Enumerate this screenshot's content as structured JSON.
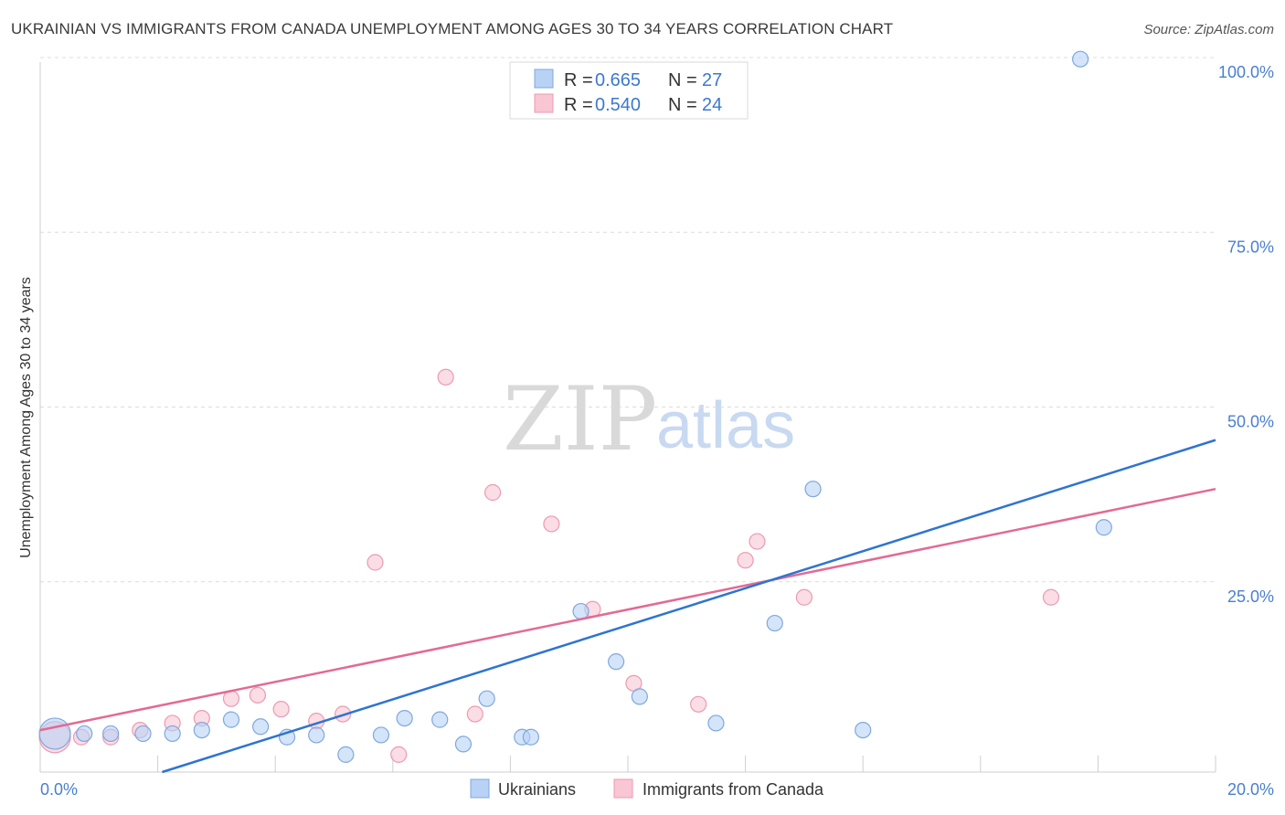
{
  "header": {
    "title": "UKRAINIAN VS IMMIGRANTS FROM CANADA UNEMPLOYMENT AMONG AGES 30 TO 34 YEARS CORRELATION CHART",
    "source": "Source: ZipAtlas.com"
  },
  "watermark": {
    "zip": "ZIP",
    "atlas": "atlas"
  },
  "legend_top": [
    {
      "r_label": "R = ",
      "r_value": "0.665",
      "n_label": "N = ",
      "n_value": "27"
    },
    {
      "r_label": "R = ",
      "r_value": "0.540",
      "n_label": "N = ",
      "n_value": "24"
    }
  ],
  "colors": {
    "blue_fill": "#b8d2f5",
    "blue_stroke": "#7fa8dc",
    "blue_line": "#2f74d0",
    "pink_fill": "#f9c6d4",
    "pink_stroke": "#ec9ab2",
    "pink_line": "#e36a93",
    "value_text": "#3d78cf",
    "grid": "#dcdcdc"
  },
  "chart_data": {
    "type": "scatter",
    "title": "UKRAINIAN VS IMMIGRANTS FROM CANADA UNEMPLOYMENT AMONG AGES 30 TO 34 YEARS CORRELATION CHART",
    "xlabel": "",
    "ylabel": "Unemployment Among Ages 30 to 34 years",
    "xlim": [
      0,
      20
    ],
    "ylim": [
      0,
      100
    ],
    "x_tick_labels": [
      {
        "value": 0,
        "label": "0.0%"
      },
      {
        "value": 20,
        "label": "20.0%"
      }
    ],
    "y_tick_labels": [
      {
        "value": 25,
        "label": "25.0%"
      },
      {
        "value": 50,
        "label": "50.0%"
      },
      {
        "value": 75,
        "label": "75.0%"
      },
      {
        "value": 100,
        "label": "100.0%"
      }
    ],
    "series": [
      {
        "name": "Ukrainians",
        "color": "#b8d2f5",
        "r": 0.665,
        "n": 27,
        "trend": {
          "x": [
            0,
            20
          ],
          "y": [
            -5.5,
            47.5
          ]
        },
        "points": [
          {
            "x": 0.25,
            "y": 5.5,
            "large": true
          },
          {
            "x": 0.75,
            "y": 5.5
          },
          {
            "x": 1.2,
            "y": 5.5
          },
          {
            "x": 1.75,
            "y": 5.5
          },
          {
            "x": 2.25,
            "y": 5.5
          },
          {
            "x": 2.75,
            "y": 6.0
          },
          {
            "x": 3.25,
            "y": 7.5
          },
          {
            "x": 3.75,
            "y": 6.5
          },
          {
            "x": 4.2,
            "y": 5.0
          },
          {
            "x": 4.7,
            "y": 5.3
          },
          {
            "x": 5.2,
            "y": 2.5
          },
          {
            "x": 5.8,
            "y": 5.3
          },
          {
            "x": 6.2,
            "y": 7.7
          },
          {
            "x": 6.8,
            "y": 7.5
          },
          {
            "x": 7.2,
            "y": 4.0
          },
          {
            "x": 7.6,
            "y": 10.5
          },
          {
            "x": 8.2,
            "y": 5.0
          },
          {
            "x": 8.35,
            "y": 5.0
          },
          {
            "x": 9.2,
            "y": 23.0
          },
          {
            "x": 9.8,
            "y": 15.8
          },
          {
            "x": 10.2,
            "y": 10.8
          },
          {
            "x": 11.5,
            "y": 7.0
          },
          {
            "x": 12.5,
            "y": 21.3
          },
          {
            "x": 13.15,
            "y": 40.5
          },
          {
            "x": 14.0,
            "y": 6.0
          },
          {
            "x": 17.7,
            "y": 102.0
          },
          {
            "x": 18.1,
            "y": 35.0
          }
        ]
      },
      {
        "name": "Immigrants from Canada",
        "color": "#f9c6d4",
        "r": 0.54,
        "n": 24,
        "trend": {
          "x": [
            0,
            20
          ],
          "y": [
            6.0,
            40.5
          ]
        },
        "points": [
          {
            "x": 0.25,
            "y": 5.0,
            "large": true
          },
          {
            "x": 0.7,
            "y": 5.0
          },
          {
            "x": 1.2,
            "y": 5.0
          },
          {
            "x": 1.7,
            "y": 6.0
          },
          {
            "x": 2.25,
            "y": 7.0
          },
          {
            "x": 2.75,
            "y": 7.7
          },
          {
            "x": 3.25,
            "y": 10.5
          },
          {
            "x": 3.7,
            "y": 11.0
          },
          {
            "x": 4.1,
            "y": 9.0
          },
          {
            "x": 4.7,
            "y": 7.3
          },
          {
            "x": 5.15,
            "y": 8.3
          },
          {
            "x": 5.7,
            "y": 30.0
          },
          {
            "x": 6.1,
            "y": 2.5
          },
          {
            "x": 6.9,
            "y": 56.5
          },
          {
            "x": 7.4,
            "y": 8.3
          },
          {
            "x": 7.7,
            "y": 40.0
          },
          {
            "x": 8.7,
            "y": 35.5
          },
          {
            "x": 9.4,
            "y": 23.3
          },
          {
            "x": 10.1,
            "y": 12.7
          },
          {
            "x": 11.2,
            "y": 9.7
          },
          {
            "x": 12.0,
            "y": 30.3
          },
          {
            "x": 12.2,
            "y": 33.0
          },
          {
            "x": 13.0,
            "y": 25.0
          },
          {
            "x": 17.2,
            "y": 25.0
          }
        ]
      }
    ],
    "legend": [
      "Ukrainians",
      "Immigrants from Canada"
    ],
    "legend_placement": "top-center and bottom-center"
  }
}
